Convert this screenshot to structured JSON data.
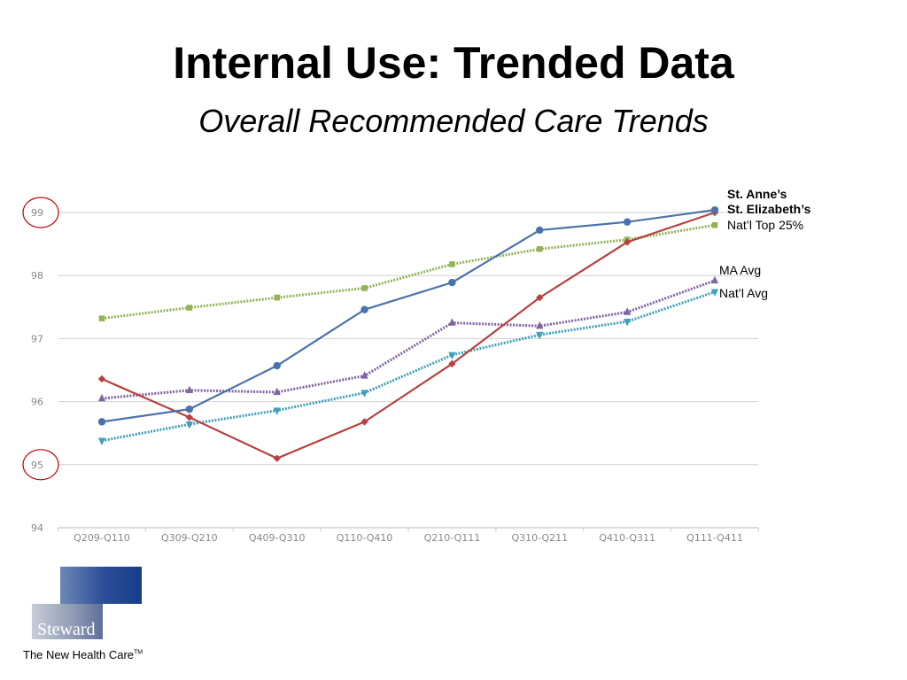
{
  "page": {
    "title": "Internal Use: Trended Data",
    "subtitle": "Overall Recommended Care Trends"
  },
  "chart_data": {
    "type": "line",
    "categories": [
      "Q209-Q110",
      "Q309-Q210",
      "Q409-Q310",
      "Q110-Q410",
      "Q210-Q111",
      "Q310-Q211",
      "Q410-Q311",
      "Q111-Q411"
    ],
    "ylim": [
      94,
      99
    ],
    "yticks": [
      94,
      95,
      96,
      97,
      98,
      99
    ],
    "grid": true,
    "legend_placement": "right",
    "highlighted_ticks": [
      95,
      99
    ],
    "highlight_color": "#c00000",
    "series": [
      {
        "name": "St. Anne’s",
        "color": "#4a72aa",
        "marker": "circle",
        "dashed": false,
        "bold": true,
        "values": [
          95.68,
          95.88,
          96.57,
          97.46,
          97.89,
          98.72,
          98.85,
          99.04
        ]
      },
      {
        "name": "St. Elizabeth’s",
        "color": "#b5423f",
        "marker": "diamond",
        "dashed": false,
        "bold": true,
        "values": [
          96.36,
          95.75,
          95.1,
          95.68,
          96.6,
          97.65,
          98.53,
          99.0
        ]
      },
      {
        "name": "Nat’l Top 25%",
        "color": "#94b357",
        "marker": "square",
        "dashed": true,
        "bold": false,
        "values": [
          97.32,
          97.49,
          97.65,
          97.8,
          98.18,
          98.42,
          98.57,
          98.8
        ]
      },
      {
        "name": "MA Avg",
        "color": "#8064a2",
        "marker": "triangle",
        "dashed": true,
        "bold": false,
        "values": [
          96.05,
          96.18,
          96.15,
          96.41,
          97.25,
          97.2,
          97.42,
          97.92
        ]
      },
      {
        "name": "Nat’l Avg",
        "color": "#3fa0b8",
        "marker": "triangle-down",
        "dashed": true,
        "bold": false,
        "values": [
          95.38,
          95.64,
          95.86,
          96.14,
          96.74,
          97.06,
          97.27,
          97.74
        ]
      }
    ]
  },
  "logo": {
    "wordmark": "Steward",
    "tagline": "The New Health Care",
    "trademark": "TM"
  }
}
